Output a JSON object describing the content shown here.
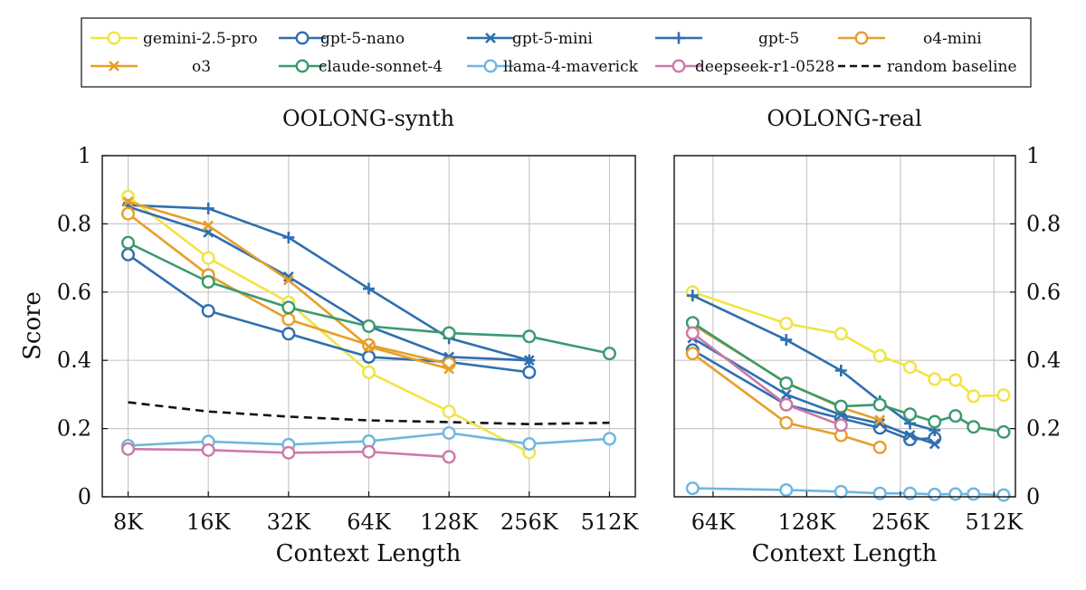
{
  "legend": {
    "entries": [
      {
        "name": "gemini-2.5-pro",
        "color": "#f0e442",
        "marker": "circle",
        "dash": false
      },
      {
        "name": "gpt-5-nano",
        "color": "#2f6fb0",
        "marker": "circle",
        "dash": false
      },
      {
        "name": "gpt-5-mini",
        "color": "#2f6fb0",
        "marker": "x",
        "dash": false
      },
      {
        "name": "gpt-5",
        "color": "#2f6fb0",
        "marker": "plus",
        "dash": false
      },
      {
        "name": "o4-mini",
        "color": "#e69f2a",
        "marker": "circle",
        "dash": false
      },
      {
        "name": "o3",
        "color": "#e69f2a",
        "marker": "x",
        "dash": false
      },
      {
        "name": "claude-sonnet-4",
        "color": "#3a9a6e",
        "marker": "circle",
        "dash": false
      },
      {
        "name": "llama-4-maverick",
        "color": "#6fb6e0",
        "marker": "circle",
        "dash": false
      },
      {
        "name": "deepseek-r1-0528",
        "color": "#cc79a7",
        "marker": "circle",
        "dash": false
      },
      {
        "name": "random baseline",
        "color": "#111111",
        "marker": "none",
        "dash": true
      }
    ]
  },
  "chart_data": [
    {
      "type": "line",
      "title": "OOLONG-synth",
      "xlabel": "Context Length",
      "ylabel": "Score",
      "x_scale": "log2",
      "x_ticks": [
        {
          "v": 8,
          "label": "8K"
        },
        {
          "v": 16,
          "label": "16K"
        },
        {
          "v": 32,
          "label": "32K"
        },
        {
          "v": 64,
          "label": "64K"
        },
        {
          "v": 128,
          "label": "128K"
        },
        {
          "v": 256,
          "label": "256K"
        },
        {
          "v": 512,
          "label": "512K"
        }
      ],
      "xlim": [
        6.4,
        640
      ],
      "ylim": [
        0,
        1
      ],
      "y_ticks": [
        {
          "v": 0,
          "label": "0"
        },
        {
          "v": 0.2,
          "label": "0.2"
        },
        {
          "v": 0.4,
          "label": "0.4"
        },
        {
          "v": 0.6,
          "label": "0.6"
        },
        {
          "v": 0.8,
          "label": "0.8"
        },
        {
          "v": 1,
          "label": "1"
        }
      ],
      "grid": true,
      "series": [
        {
          "name": "gemini-2.5-pro",
          "x": [
            8,
            16,
            32,
            64,
            128,
            256
          ],
          "y": [
            0.88,
            0.7,
            0.57,
            0.365,
            0.25,
            0.13
          ]
        },
        {
          "name": "gpt-5-nano",
          "x": [
            8,
            16,
            32,
            64,
            128,
            256
          ],
          "y": [
            0.71,
            0.545,
            0.478,
            0.41,
            0.395,
            0.365
          ]
        },
        {
          "name": "gpt-5-mini",
          "x": [
            8,
            16,
            32,
            64,
            128,
            256
          ],
          "y": [
            0.85,
            0.775,
            0.645,
            0.5,
            0.41,
            0.4
          ]
        },
        {
          "name": "gpt-5",
          "x": [
            8,
            16,
            32,
            64,
            128,
            256
          ],
          "y": [
            0.855,
            0.845,
            0.76,
            0.61,
            0.465,
            0.4
          ]
        },
        {
          "name": "o4-mini",
          "x": [
            8,
            16,
            32,
            64,
            128
          ],
          "y": [
            0.83,
            0.65,
            0.52,
            0.445,
            0.39
          ]
        },
        {
          "name": "o3",
          "x": [
            8,
            16,
            32,
            64,
            128
          ],
          "y": [
            0.865,
            0.795,
            0.635,
            0.44,
            0.375
          ]
        },
        {
          "name": "claude-sonnet-4",
          "x": [
            8,
            16,
            32,
            64,
            128,
            256,
            512
          ],
          "y": [
            0.745,
            0.63,
            0.555,
            0.5,
            0.48,
            0.47,
            0.42
          ]
        },
        {
          "name": "llama-4-maverick",
          "x": [
            8,
            16,
            32,
            64,
            128,
            256,
            512
          ],
          "y": [
            0.15,
            0.162,
            0.153,
            0.163,
            0.187,
            0.155,
            0.17
          ]
        },
        {
          "name": "deepseek-r1-0528",
          "x": [
            8,
            16,
            32,
            64,
            128
          ],
          "y": [
            0.14,
            0.137,
            0.129,
            0.132,
            0.117
          ]
        },
        {
          "name": "random baseline",
          "x": [
            8,
            16,
            32,
            64,
            128,
            256,
            512
          ],
          "y": [
            0.277,
            0.25,
            0.235,
            0.224,
            0.219,
            0.213,
            0.217
          ]
        }
      ]
    },
    {
      "type": "line",
      "title": "OOLONG-real",
      "xlabel": "Context Length",
      "ylabel": "",
      "x_scale": "log2",
      "x_ticks": [
        {
          "v": 64,
          "label": "64K"
        },
        {
          "v": 128,
          "label": "128K"
        },
        {
          "v": 256,
          "label": "256K"
        },
        {
          "v": 512,
          "label": "512K"
        }
      ],
      "xlim": [
        48,
        600
      ],
      "ylim": [
        0,
        1
      ],
      "y_ticks": [
        {
          "v": 0,
          "label": "0"
        },
        {
          "v": 0.2,
          "label": "0.2"
        },
        {
          "v": 0.4,
          "label": "0.4"
        },
        {
          "v": 0.6,
          "label": "0.6"
        },
        {
          "v": 0.8,
          "label": "0.8"
        },
        {
          "v": 1,
          "label": "1"
        }
      ],
      "grid": true,
      "series": [
        {
          "name": "gemini-2.5-pro",
          "x": [
            55,
            110,
            165,
            220,
            275,
            330,
            385,
            440,
            550
          ],
          "y": [
            0.6,
            0.508,
            0.478,
            0.413,
            0.38,
            0.345,
            0.342,
            0.295,
            0.298
          ]
        },
        {
          "name": "gpt-5-nano",
          "x": [
            55,
            110,
            165,
            220,
            275,
            330
          ],
          "y": [
            0.43,
            0.27,
            0.23,
            0.202,
            0.168,
            0.172
          ]
        },
        {
          "name": "gpt-5-mini",
          "x": [
            55,
            110,
            165,
            220,
            275,
            330
          ],
          "y": [
            0.465,
            0.3,
            0.24,
            0.215,
            0.18,
            0.155
          ]
        },
        {
          "name": "gpt-5",
          "x": [
            55,
            110,
            165,
            220,
            275,
            330
          ],
          "y": [
            0.59,
            0.46,
            0.37,
            0.28,
            0.215,
            0.195
          ]
        },
        {
          "name": "o4-mini",
          "x": [
            55,
            110,
            165,
            220
          ],
          "y": [
            0.42,
            0.217,
            0.18,
            0.145
          ]
        },
        {
          "name": "o3",
          "x": [
            55,
            110,
            165,
            220
          ],
          "y": [
            0.505,
            0.335,
            0.262,
            0.225
          ]
        },
        {
          "name": "claude-sonnet-4",
          "x": [
            55,
            110,
            165,
            220,
            275,
            330,
            385,
            440,
            550
          ],
          "y": [
            0.51,
            0.333,
            0.265,
            0.27,
            0.242,
            0.22,
            0.237,
            0.205,
            0.19
          ]
        },
        {
          "name": "llama-4-maverick",
          "x": [
            55,
            110,
            165,
            220,
            275,
            330,
            385,
            440,
            550
          ],
          "y": [
            0.025,
            0.02,
            0.015,
            0.01,
            0.01,
            0.007,
            0.008,
            0.008,
            0.005
          ]
        },
        {
          "name": "deepseek-r1-0528",
          "x": [
            55,
            110,
            165
          ],
          "y": [
            0.48,
            0.27,
            0.21
          ]
        }
      ]
    }
  ]
}
